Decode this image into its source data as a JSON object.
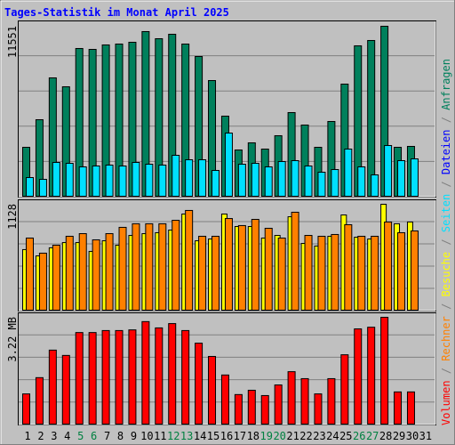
{
  "title": "Tages-Statistik im Monat April 2025",
  "categories": [
    1,
    2,
    3,
    4,
    5,
    6,
    7,
    8,
    9,
    10,
    11,
    12,
    13,
    14,
    15,
    16,
    17,
    18,
    19,
    20,
    21,
    22,
    23,
    24,
    25,
    26,
    27,
    28,
    29,
    30,
    31
  ],
  "highlighted_categories": [
    5,
    6,
    12,
    13,
    19,
    20,
    26,
    27
  ],
  "highlight_color": "#008040",
  "legend_separator": "/",
  "legend": [
    {
      "name": "Dateien",
      "color": "#0000ff"
    }
  ],
  "chart_data": [
    {
      "type": "bar",
      "ylim": [
        0,
        11551
      ],
      "yticks": [
        11551
      ],
      "grid": true,
      "series": [
        {
          "name": "Anfragen",
          "color": "#00805c",
          "values": [
            3326,
            5201,
            8044,
            7439,
            10040,
            9979,
            10282,
            10342,
            10463,
            11189,
            10705,
            11007,
            10342,
            9495,
            7862,
            5443,
            3145,
            3629,
            3205,
            4113,
            5685,
            4838,
            3326,
            5080,
            7620,
            10221,
            10584,
            11551,
            3326,
            3387,
            null
          ]
        },
        {
          "name": "Seiten",
          "color": "#00e0ff",
          "values": [
            1270,
            1149,
            2298,
            2238,
            1996,
            2056,
            2117,
            2056,
            2298,
            2177,
            2117,
            2782,
            2480,
            2480,
            1754,
            4294,
            2177,
            2238,
            1996,
            2359,
            2419,
            2056,
            1633,
            1814,
            3205,
            1996,
            1452,
            3447,
            2419,
            2540,
            null
          ]
        }
      ]
    },
    {
      "type": "bar",
      "ylim": [
        0,
        1128
      ],
      "yticks": [
        1128
      ],
      "grid": true,
      "series": [
        {
          "name": "Besuche",
          "color": "#ffff00",
          "values": [
            645,
            578,
            664,
            720,
            720,
            626,
            739,
            692,
            796,
            815,
            825,
            853,
            1024,
            739,
            758,
            1024,
            891,
            891,
            768,
            796,
            995,
            711,
            683,
            787,
            1014,
            777,
            758,
            1128,
            920,
            939,
            null
          ]
        },
        {
          "name": "Rechner",
          "color": "#ff8000",
          "values": [
            768,
            607,
            692,
            787,
            815,
            749,
            815,
            882,
            920,
            920,
            920,
            957,
            1062,
            787,
            787,
            976,
            901,
            967,
            872,
            768,
            1043,
            796,
            787,
            806,
            910,
            787,
            787,
            939,
            825,
            844,
            null
          ]
        }
      ]
    },
    {
      "type": "bar",
      "ylim": [
        0,
        3.22
      ],
      "yticks": [
        {
          "value": 3.22,
          "label": "3.22 MB"
        }
      ],
      "grid": true,
      "series": [
        {
          "name": "Volumen",
          "color": "#ff0000",
          "values": [
            0.91,
            1.4,
            2.23,
            2.07,
            2.76,
            2.76,
            2.82,
            2.82,
            2.84,
            3.09,
            2.9,
            3.03,
            2.82,
            2.44,
            2.04,
            1.48,
            0.89,
            1.02,
            0.86,
            1.18,
            1.58,
            1.37,
            0.91,
            1.37,
            2.09,
            2.87,
            2.92,
            3.22,
            0.97,
            0.97,
            null
          ]
        }
      ]
    }
  ]
}
